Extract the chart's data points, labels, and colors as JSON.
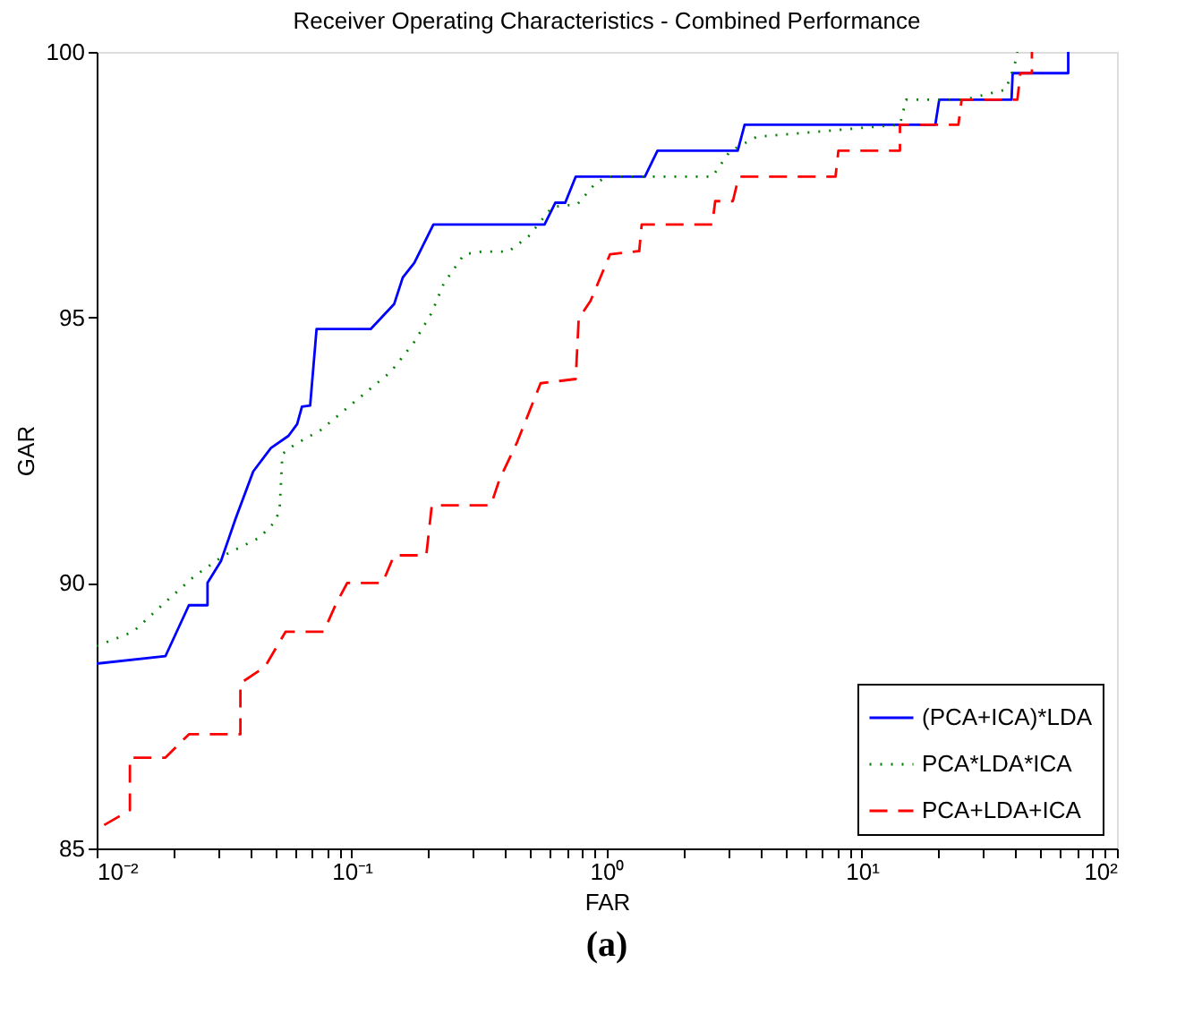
{
  "chart_data": {
    "type": "line",
    "title": "Receiver Operating Characteristics - Combined Performance",
    "xlabel": "FAR",
    "ylabel": "GAR",
    "log": "x",
    "xlim": [
      0.01,
      100
    ],
    "ylim": [
      85,
      100
    ],
    "yticks": [
      85,
      90,
      95,
      100
    ],
    "xticks": [
      {
        "value": 0.01,
        "label": "10⁻²"
      },
      {
        "value": 0.02,
        "label": null
      },
      {
        "value": 0.03,
        "label": null
      },
      {
        "value": 0.04,
        "label": null
      },
      {
        "value": 0.05,
        "label": null
      },
      {
        "value": 0.06,
        "label": null
      },
      {
        "value": 0.07,
        "label": null
      },
      {
        "value": 0.08,
        "label": null
      },
      {
        "value": 0.09,
        "label": null
      },
      {
        "value": 0.1,
        "label": "10⁻¹"
      },
      {
        "value": 0.2,
        "label": null
      },
      {
        "value": 0.3,
        "label": null
      },
      {
        "value": 0.4,
        "label": null
      },
      {
        "value": 0.5,
        "label": null
      },
      {
        "value": 0.6,
        "label": null
      },
      {
        "value": 0.7,
        "label": null
      },
      {
        "value": 0.8,
        "label": null
      },
      {
        "value": 0.9,
        "label": null
      },
      {
        "value": 1,
        "label": "10⁰"
      },
      {
        "value": 2,
        "label": null
      },
      {
        "value": 3,
        "label": null
      },
      {
        "value": 4,
        "label": null
      },
      {
        "value": 5,
        "label": null
      },
      {
        "value": 6,
        "label": null
      },
      {
        "value": 7,
        "label": null
      },
      {
        "value": 8,
        "label": null
      },
      {
        "value": 9,
        "label": null
      },
      {
        "value": 10,
        "label": "10¹"
      },
      {
        "value": 20,
        "label": null
      },
      {
        "value": 30,
        "label": null
      },
      {
        "value": 40,
        "label": null
      },
      {
        "value": 50,
        "label": null
      },
      {
        "value": 60,
        "label": null
      },
      {
        "value": 70,
        "label": null
      },
      {
        "value": 80,
        "label": null
      },
      {
        "value": 90,
        "label": null
      },
      {
        "value": 100,
        "label": "10²"
      }
    ],
    "grid": false,
    "legend": "bottom right",
    "annotations": [
      "(a)"
    ],
    "series": [
      {
        "name": "(PCA+ICA)*LDA",
        "color": "#0000ff",
        "line_style": "solid",
        "x": [
          0.01,
          0.0186,
          0.023,
          0.0272,
          0.0272,
          0.0307,
          0.0351,
          0.0411,
          0.0482,
          0.0565,
          0.0611,
          0.0638,
          0.0687,
          0.0728,
          0.1186,
          0.1466,
          0.1585,
          0.176,
          0.209,
          0.57,
          0.628,
          0.687,
          0.755,
          1.41,
          1.58,
          3.26,
          3.47,
          19.4,
          20.1,
          38.6,
          39.0,
          64.4,
          64.4
        ],
        "values": [
          88.48,
          88.62,
          89.58,
          89.58,
          90.0,
          90.41,
          91.22,
          92.1,
          92.54,
          92.77,
          92.99,
          93.32,
          93.34,
          94.78,
          94.78,
          95.25,
          95.75,
          96.03,
          96.75,
          96.75,
          97.16,
          97.16,
          97.65,
          97.65,
          98.14,
          98.14,
          98.63,
          98.63,
          99.1,
          99.1,
          99.6,
          99.6,
          100
        ]
      },
      {
        "name": "PCA*LDA*ICA",
        "color": "#008000",
        "line_style": "dotted",
        "x": [
          0.01,
          0.0139,
          0.0186,
          0.0242,
          0.0316,
          0.0434,
          0.0495,
          0.0521,
          0.0535,
          0.0595,
          0.0756,
          0.1037,
          0.1426,
          0.176,
          0.206,
          0.2295,
          0.276,
          0.324,
          0.411,
          0.494,
          0.611,
          0.767,
          0.9,
          1.0,
          2.59,
          3.04,
          3.86,
          14.1,
          14.9,
          25.2,
          36.6,
          39.6,
          40.7
        ],
        "values": [
          88.81,
          89.08,
          89.64,
          90.13,
          90.52,
          90.85,
          91.13,
          91.35,
          92.43,
          92.6,
          92.88,
          93.43,
          93.98,
          94.54,
          95.09,
          95.64,
          96.19,
          96.24,
          96.24,
          96.53,
          97.08,
          97.13,
          97.52,
          97.65,
          97.65,
          98.13,
          98.4,
          98.63,
          99.1,
          99.1,
          99.29,
          99.73,
          100
        ]
      },
      {
        "name": "PCA+LDA+ICA",
        "color": "#ff0000",
        "line_style": "dashed",
        "x": [
          0.0107,
          0.0135,
          0.0135,
          0.0186,
          0.023,
          0.0366,
          0.0366,
          0.0457,
          0.055,
          0.0776,
          0.0863,
          0.096,
          0.132,
          0.1466,
          0.196,
          0.206,
          0.351,
          0.379,
          0.445,
          0.55,
          0.755,
          0.776,
          0.863,
          1.03,
          1.34,
          1.37,
          2.59,
          2.66,
          3.12,
          3.29,
          7.88,
          8.09,
          14.1,
          14.1,
          23.9,
          24.6,
          40.7,
          41.8,
          46.4,
          46.4
        ],
        "values": [
          85.44,
          85.72,
          86.71,
          86.71,
          87.15,
          87.15,
          88.11,
          88.42,
          89.08,
          89.08,
          89.58,
          90.0,
          90.0,
          90.52,
          90.52,
          91.46,
          91.46,
          91.94,
          92.65,
          93.76,
          93.84,
          94.98,
          95.31,
          96.19,
          96.25,
          96.75,
          96.75,
          97.19,
          97.19,
          97.65,
          97.65,
          98.14,
          98.14,
          98.63,
          98.63,
          99.1,
          99.1,
          99.6,
          99.6,
          100
        ]
      }
    ]
  }
}
